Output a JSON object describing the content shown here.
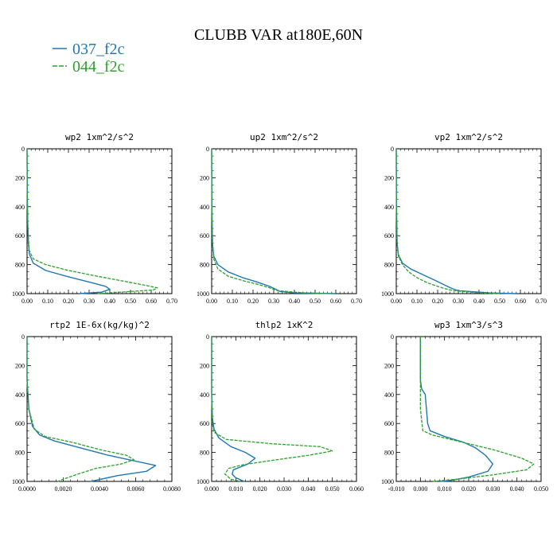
{
  "figure": {
    "title": "CLUBB VAR at180E,60N",
    "legend": [
      {
        "label": "037_f2c",
        "color": "#1f77b4"
      },
      {
        "label": "044_f2c",
        "color": "#2ca02c"
      }
    ]
  },
  "chart_data": [
    {
      "type": "line",
      "title": "wp2   1xm^2/s^2",
      "xlim": [
        0,
        0.7
      ],
      "ylim": [
        1000,
        0
      ],
      "grid": false,
      "xticks": [
        "0.00",
        "0.10",
        "0.20",
        "0.30",
        "0.40",
        "0.50",
        "0.60",
        "0.70"
      ],
      "yticks": [
        "0",
        "200",
        "400",
        "600",
        "800",
        "1000"
      ],
      "series": [
        {
          "name": "037_f2c",
          "points": [
            [
              0,
              0
            ],
            [
              0.001,
              300
            ],
            [
              0.003,
              500
            ],
            [
              0.006,
              650
            ],
            [
              0.012,
              730
            ],
            [
              0.03,
              790
            ],
            [
              0.09,
              840
            ],
            [
              0.19,
              880
            ],
            [
              0.3,
              920
            ],
            [
              0.38,
              950
            ],
            [
              0.4,
              970
            ],
            [
              0.36,
              990
            ],
            [
              0.25,
              1000
            ]
          ]
        },
        {
          "name": "044_f2c",
          "points": [
            [
              0,
              0
            ],
            [
              0.001,
              300
            ],
            [
              0.004,
              550
            ],
            [
              0.01,
              700
            ],
            [
              0.03,
              760
            ],
            [
              0.09,
              800
            ],
            [
              0.2,
              840
            ],
            [
              0.34,
              880
            ],
            [
              0.47,
              915
            ],
            [
              0.58,
              945
            ],
            [
              0.63,
              960
            ],
            [
              0.61,
              975
            ],
            [
              0.45,
              990
            ],
            [
              0.34,
              1000
            ]
          ]
        }
      ]
    },
    {
      "type": "line",
      "title": "up2   1xm^2/s^2",
      "xlim": [
        0,
        0.7
      ],
      "ylim": [
        1000,
        0
      ],
      "grid": false,
      "xticks": [
        "0.00",
        "0.10",
        "0.20",
        "0.30",
        "0.40",
        "0.50",
        "0.60",
        "0.70"
      ],
      "yticks": [
        "0",
        "200",
        "400",
        "600",
        "800",
        "1000"
      ],
      "series": [
        {
          "name": "037_f2c",
          "points": [
            [
              0,
              0
            ],
            [
              0.001,
              400
            ],
            [
              0.004,
              650
            ],
            [
              0.01,
              740
            ],
            [
              0.03,
              800
            ],
            [
              0.08,
              850
            ],
            [
              0.15,
              890
            ],
            [
              0.22,
              920
            ],
            [
              0.28,
              950
            ],
            [
              0.31,
              970
            ],
            [
              0.33,
              985
            ],
            [
              0.4,
              995
            ],
            [
              0.6,
              1000
            ]
          ]
        },
        {
          "name": "044_f2c",
          "points": [
            [
              0,
              0
            ],
            [
              0.001,
              400
            ],
            [
              0.004,
              650
            ],
            [
              0.01,
              760
            ],
            [
              0.03,
              830
            ],
            [
              0.08,
              880
            ],
            [
              0.15,
              910
            ],
            [
              0.22,
              935
            ],
            [
              0.27,
              955
            ],
            [
              0.3,
              970
            ],
            [
              0.32,
              980
            ],
            [
              0.45,
              995
            ],
            [
              0.58,
              1000
            ]
          ]
        }
      ]
    },
    {
      "type": "line",
      "title": "vp2   1xm^2/s^2",
      "xlim": [
        0,
        0.7
      ],
      "ylim": [
        1000,
        0
      ],
      "grid": false,
      "xticks": [
        "0.00",
        "0.10",
        "0.20",
        "0.30",
        "0.40",
        "0.50",
        "0.60",
        "0.70"
      ],
      "yticks": [
        "0",
        "200",
        "400",
        "600",
        "800",
        "1000"
      ],
      "series": [
        {
          "name": "037_f2c",
          "points": [
            [
              0,
              0
            ],
            [
              0.001,
              400
            ],
            [
              0.004,
              650
            ],
            [
              0.01,
              730
            ],
            [
              0.03,
              790
            ],
            [
              0.07,
              830
            ],
            [
              0.13,
              870
            ],
            [
              0.19,
              910
            ],
            [
              0.24,
              945
            ],
            [
              0.27,
              965
            ],
            [
              0.3,
              980
            ],
            [
              0.45,
              995
            ],
            [
              0.58,
              1000
            ]
          ]
        },
        {
          "name": "044_f2c",
          "points": [
            [
              0,
              0
            ],
            [
              0.001,
              400
            ],
            [
              0.004,
              650
            ],
            [
              0.01,
              740
            ],
            [
              0.03,
              800
            ],
            [
              0.06,
              850
            ],
            [
              0.1,
              890
            ],
            [
              0.15,
              925
            ],
            [
              0.2,
              950
            ],
            [
              0.24,
              968
            ],
            [
              0.28,
              980
            ],
            [
              0.4,
              995
            ],
            [
              0.5,
              1000
            ]
          ]
        }
      ]
    },
    {
      "type": "line",
      "title": "rtp2   1E-6x(kg/kg)^2",
      "xlim": [
        0,
        0.008
      ],
      "ylim": [
        1000,
        0
      ],
      "grid": false,
      "xticks": [
        "0.0000",
        "0.0020",
        "0.0040",
        "0.0060",
        "0.0080"
      ],
      "yticks": [
        "0",
        "200",
        "400",
        "600",
        "800",
        "1000"
      ],
      "series": [
        {
          "name": "037_f2c",
          "points": [
            [
              0,
              0
            ],
            [
              0,
              300
            ],
            [
              0.0001,
              500
            ],
            [
              0.0003,
              620
            ],
            [
              0.0007,
              680
            ],
            [
              0.0015,
              720
            ],
            [
              0.003,
              770
            ],
            [
              0.0045,
              820
            ],
            [
              0.006,
              860
            ],
            [
              0.0071,
              890
            ],
            [
              0.0066,
              930
            ],
            [
              0.005,
              960
            ],
            [
              0.0039,
              990
            ],
            [
              0.0035,
              1000
            ]
          ]
        },
        {
          "name": "044_f2c",
          "points": [
            [
              0,
              0
            ],
            [
              0,
              300
            ],
            [
              0.0001,
              500
            ],
            [
              0.0004,
              640
            ],
            [
              0.001,
              690
            ],
            [
              0.0025,
              730
            ],
            [
              0.004,
              780
            ],
            [
              0.0055,
              820
            ],
            [
              0.0059,
              850
            ],
            [
              0.0052,
              880
            ],
            [
              0.0038,
              910
            ],
            [
              0.0028,
              950
            ],
            [
              0.002,
              985
            ],
            [
              0.0017,
              1000
            ]
          ]
        }
      ]
    },
    {
      "type": "line",
      "title": "thlp2   1xK^2",
      "xlim": [
        0,
        0.06
      ],
      "ylim": [
        1000,
        0
      ],
      "grid": false,
      "xticks": [
        "0.000",
        "0.010",
        "0.020",
        "0.030",
        "0.040",
        "0.050",
        "0.060"
      ],
      "yticks": [
        "0",
        "200",
        "400",
        "600",
        "800",
        "1000"
      ],
      "series": [
        {
          "name": "037_f2c",
          "points": [
            [
              0,
              0
            ],
            [
              0,
              400
            ],
            [
              0.0003,
              560
            ],
            [
              0.001,
              640
            ],
            [
              0.003,
              700
            ],
            [
              0.008,
              760
            ],
            [
              0.014,
              800
            ],
            [
              0.018,
              840
            ],
            [
              0.015,
              880
            ],
            [
              0.009,
              920
            ],
            [
              0.0085,
              950
            ],
            [
              0.01,
              975
            ],
            [
              0.0135,
              1000
            ]
          ]
        },
        {
          "name": "044_f2c",
          "points": [
            [
              0,
              0
            ],
            [
              0,
              400
            ],
            [
              0.0003,
              600
            ],
            [
              0.001,
              660
            ],
            [
              0.006,
              710
            ],
            [
              0.025,
              740
            ],
            [
              0.045,
              760
            ],
            [
              0.05,
              790
            ],
            [
              0.04,
              820
            ],
            [
              0.025,
              855
            ],
            [
              0.013,
              885
            ],
            [
              0.007,
              910
            ],
            [
              0.0055,
              950
            ],
            [
              0.008,
              985
            ],
            [
              0.012,
              1000
            ]
          ]
        }
      ]
    },
    {
      "type": "line",
      "title": "wp3   1xm^3/s^3",
      "xlim": [
        -0.01,
        0.05
      ],
      "ylim": [
        1000,
        0
      ],
      "grid": false,
      "xticks": [
        "-0.010",
        "0.000",
        "0.010",
        "0.020",
        "0.030",
        "0.040",
        "0.050"
      ],
      "yticks": [
        "0",
        "200",
        "400",
        "600",
        "800",
        "1000"
      ],
      "series": [
        {
          "name": "037_f2c",
          "points": [
            [
              0,
              0
            ],
            [
              0,
              300
            ],
            [
              0.0005,
              360
            ],
            [
              0.002,
              400
            ],
            [
              0.0025,
              500
            ],
            [
              0.003,
              600
            ],
            [
              0.004,
              650
            ],
            [
              0.01,
              690
            ],
            [
              0.018,
              730
            ],
            [
              0.023,
              770
            ],
            [
              0.027,
              820
            ],
            [
              0.03,
              880
            ],
            [
              0.028,
              930
            ],
            [
              0.02,
              970
            ],
            [
              0.012,
              995
            ],
            [
              0.008,
              1000
            ]
          ]
        },
        {
          "name": "044_f2c",
          "points": [
            [
              0,
              0
            ],
            [
              0,
              300
            ],
            [
              0,
              500
            ],
            [
              0.001,
              650
            ],
            [
              0.005,
              680
            ],
            [
              0.015,
              720
            ],
            [
              0.03,
              780
            ],
            [
              0.042,
              840
            ],
            [
              0.047,
              880
            ],
            [
              0.044,
              920
            ],
            [
              0.03,
              955
            ],
            [
              0.015,
              985
            ],
            [
              0.005,
              1000
            ]
          ]
        }
      ]
    }
  ]
}
